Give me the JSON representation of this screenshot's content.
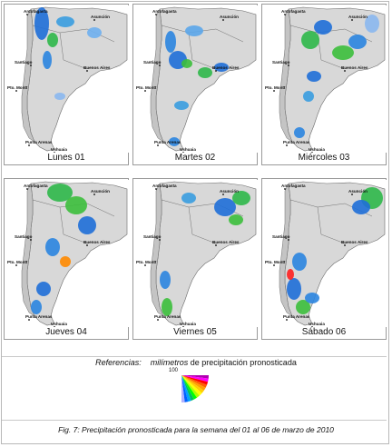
{
  "panels": [
    {
      "day": "Lunes 01"
    },
    {
      "day": "Martes 02"
    },
    {
      "day": "Miércoles 03"
    },
    {
      "day": "Jueves 04"
    },
    {
      "day": "Viernes 05"
    },
    {
      "day": "Sábado 06"
    }
  ],
  "cities": {
    "antofagasta": "Antofagasta",
    "asuncion": "Asunción",
    "santiago": "Santiago",
    "buenos_aires": "Buenos Aires",
    "pto_montt": "Pto. Montt",
    "punta_arenas": "Punta Arenas",
    "ushuaia": "Ushuaia"
  },
  "references": {
    "label": "Referencias:",
    "italic_text": "milímetros",
    "text": "de precipitación pronosticada"
  },
  "legend": {
    "max_label": "100",
    "colors": [
      "#b000b0",
      "#ff00ff",
      "#ff0000",
      "#ff6000",
      "#ffa000",
      "#ffd000",
      "#ffff00",
      "#b0ff00",
      "#00ff00",
      "#00c060",
      "#00a0ff",
      "#0060ff",
      "#b0b0ff"
    ]
  },
  "caption": "Fig. 7: Precipitación pronosticada para la semana del 01 al 06 de marzo de 2010"
}
